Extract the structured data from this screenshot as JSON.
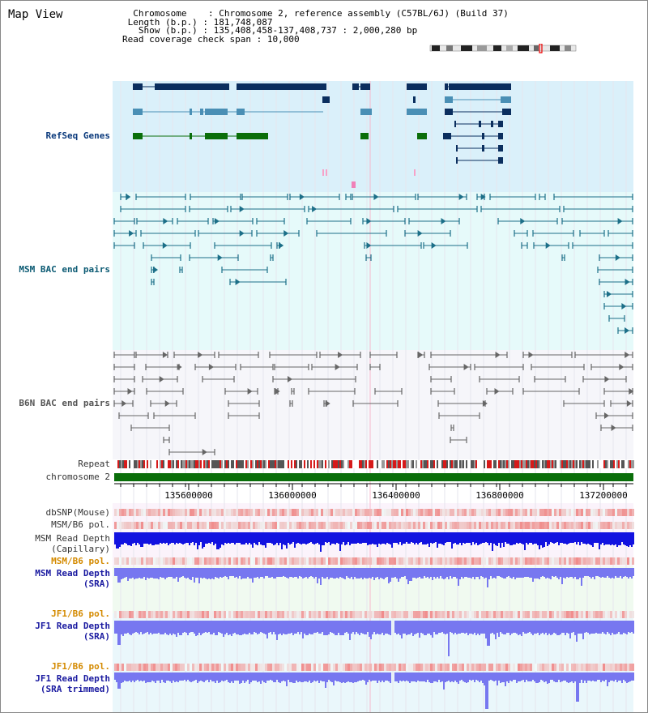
{
  "title": "Map View",
  "header": {
    "chromosome_label": "Chromosome",
    "chromosome_value": "Chromosome 2, reference assembly (C57BL/6J) (Build 37)",
    "length_label": "Length (b.p.)",
    "length_value": "181,748,087",
    "show_label": "Show (b.p.)",
    "show_value": "135,408,458-137,408,737 : 2,000,280 bp",
    "coverage_label": "Read coverage check span",
    "coverage_value": "10,000"
  },
  "tracks": {
    "refseq": "RefSeq Genes",
    "msm_bac": "MSM BAC end pairs",
    "b6n_bac": "B6N BAC end pairs",
    "repeat": "Repeat",
    "chromosome": "chromosome 2",
    "dbsnp": "dbSNP(Mouse)",
    "msm_pol1": "MSM/B6 pol.",
    "msm_depth_cap_1": "MSM Read Depth",
    "msm_depth_cap_2": "(Capillary)",
    "msm_pol2": "MSM/B6 pol.",
    "msm_depth_sra_1": "MSM Read Depth",
    "msm_depth_sra_2": "(SRA)",
    "jf1_pol1": "JF1/B6 pol.",
    "jf1_depth_sra_1": "JF1 Read Depth",
    "jf1_depth_sra_2": "(SRA)",
    "jf1_pol2": "JF1/B6 pol.",
    "jf1_depth_trim_1": "JF1 Read Depth",
    "jf1_depth_trim_2": "(SRA trimmed)"
  },
  "axis": {
    "ticks": [
      "135600000",
      "136000000",
      "136400000",
      "136800000",
      "137200000"
    ]
  },
  "colors": {
    "refseq_bg": "#daf0fa",
    "msm_bg": "#e6fafa",
    "b6n_bg": "#f6f6fa",
    "refseq_dark": "#0b2e5e",
    "refseq_mid": "#4a8fb5",
    "refseq_green": "#0a6e0a",
    "msm_feature": "#1c6f88",
    "b6n_feature": "#666666",
    "chromosome_bar": "#0a6e0a",
    "depth_cap": "#1212e0",
    "depth_sra": "#7777f0"
  }
}
